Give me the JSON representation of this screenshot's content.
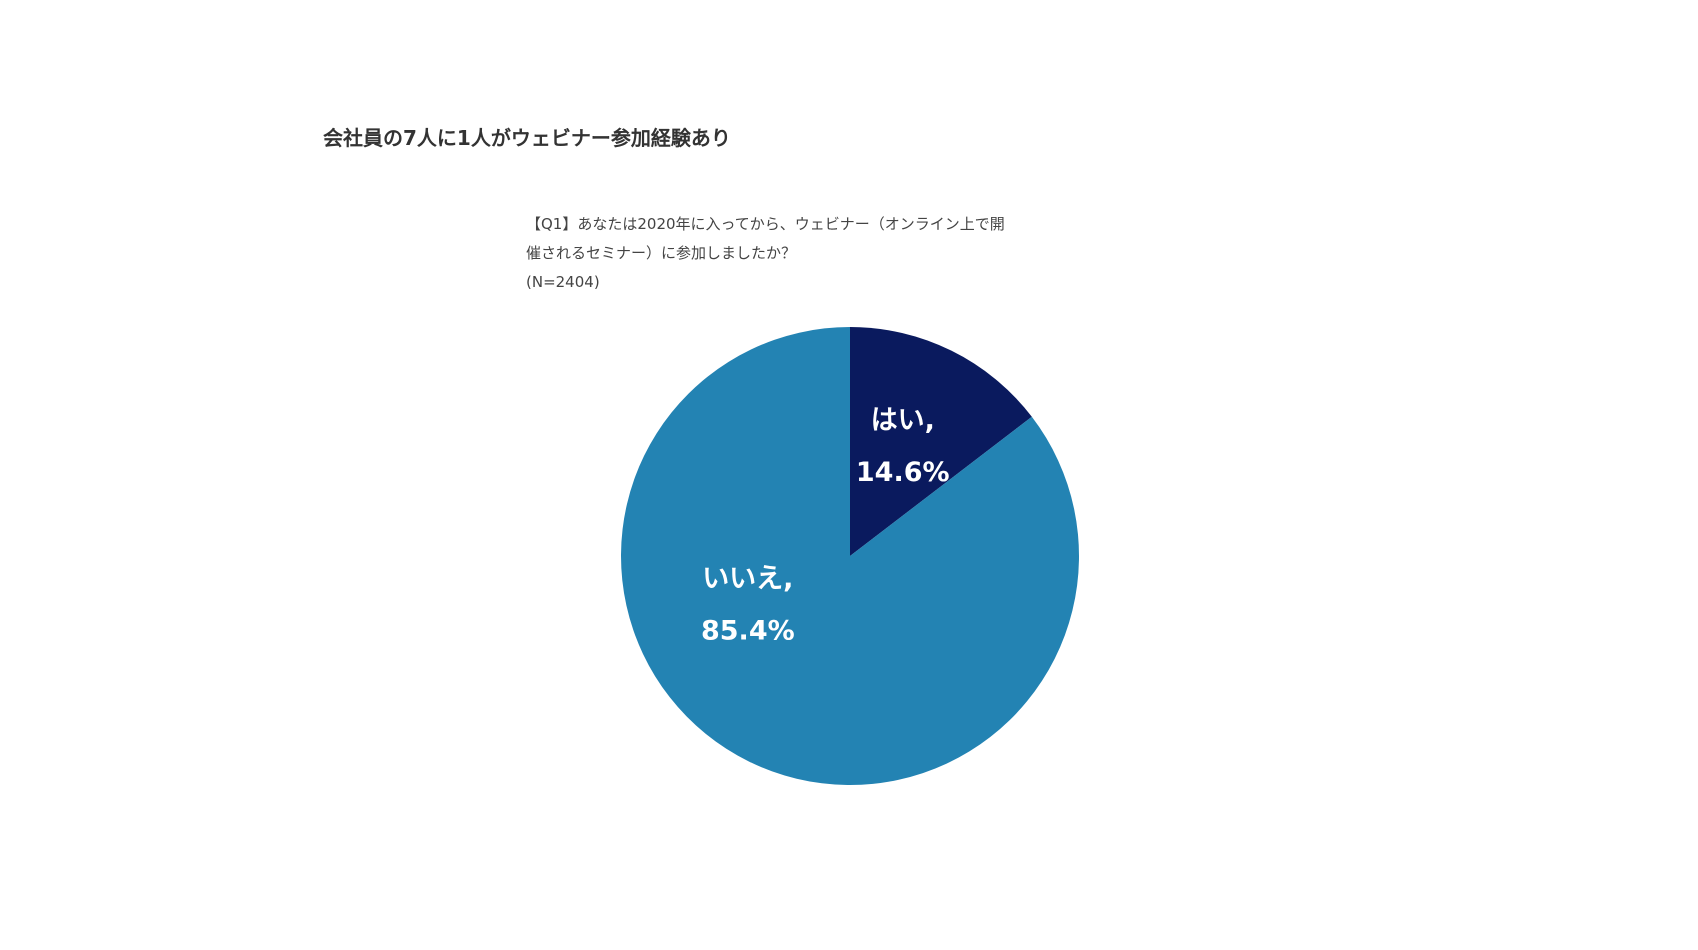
{
  "chart_data": {
    "type": "pie",
    "title": "会社員の7人に1人がウェビナー参加経験あり",
    "subtitle_lines": [
      "【Q1】あなたは2020年に入ってから、ウェビナー（オンライン上で開",
      "催されるセミナー）に参加しましたか？",
      "(N=2404)"
    ],
    "slices": [
      {
        "category": "はい,",
        "value": 14.6,
        "value_label": "14.6%",
        "color": "#0a1a5e"
      },
      {
        "category": "いいえ,",
        "value": 85.4,
        "value_label": "85.4%",
        "color": "#2383b3"
      }
    ],
    "start_angle_deg": 0,
    "direction": "clockwise",
    "legend": "none"
  }
}
